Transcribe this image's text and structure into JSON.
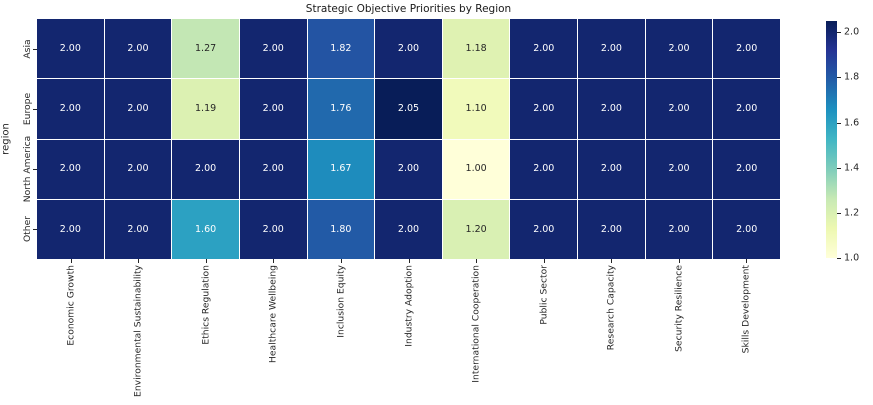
{
  "title": "Strategic Objective Priorities by Region",
  "colors": {
    "background": "#ffffff",
    "grid_line": "#ffffff",
    "tick_label": "#262626",
    "title_text": "#1a1a1a",
    "annotation_light": "#ffffff",
    "annotation_dark": "#262626"
  },
  "chart_data": {
    "type": "heatmap",
    "title": "Strategic Objective Priorities by Region",
    "xlabel": "",
    "ylabel": "region",
    "rows": [
      "Asia",
      "Europe",
      "North America",
      "Other"
    ],
    "columns": [
      "Economic Growth",
      "Environmental Sustainability",
      "Ethics Regulation",
      "Healthcare Wellbeing",
      "Inclusion Equity",
      "Industry Adoption",
      "International Cooperation",
      "Public Sector",
      "Research Capacity",
      "Security Resilience",
      "Skills Development"
    ],
    "values": [
      [
        2.0,
        2.0,
        1.27,
        2.0,
        1.82,
        2.0,
        1.18,
        2.0,
        2.0,
        2.0,
        2.0
      ],
      [
        2.0,
        2.0,
        1.19,
        2.0,
        1.76,
        2.05,
        1.1,
        2.0,
        2.0,
        2.0,
        2.0
      ],
      [
        2.0,
        2.0,
        2.0,
        2.0,
        1.67,
        2.0,
        1.0,
        2.0,
        2.0,
        2.0,
        2.0
      ],
      [
        2.0,
        2.0,
        1.6,
        2.0,
        1.8,
        2.0,
        1.2,
        2.0,
        2.0,
        2.0,
        2.0
      ]
    ],
    "annotation_decimals": 2,
    "vmin": 1.0,
    "vmax": 2.05,
    "colormap_name": "YlGnBu",
    "colormap_stops": [
      "#ffffd9",
      "#edf8b1",
      "#c7e9b4",
      "#7fcdbb",
      "#41b6c4",
      "#1d91c0",
      "#225ea8",
      "#253494",
      "#081d58"
    ],
    "colorbar_position": "right",
    "colorbar_ticks": [
      1.0,
      1.2,
      1.4,
      1.6,
      1.8,
      2.0
    ],
    "colorbar_tick_decimals": 1,
    "grid": false,
    "legend": false
  }
}
